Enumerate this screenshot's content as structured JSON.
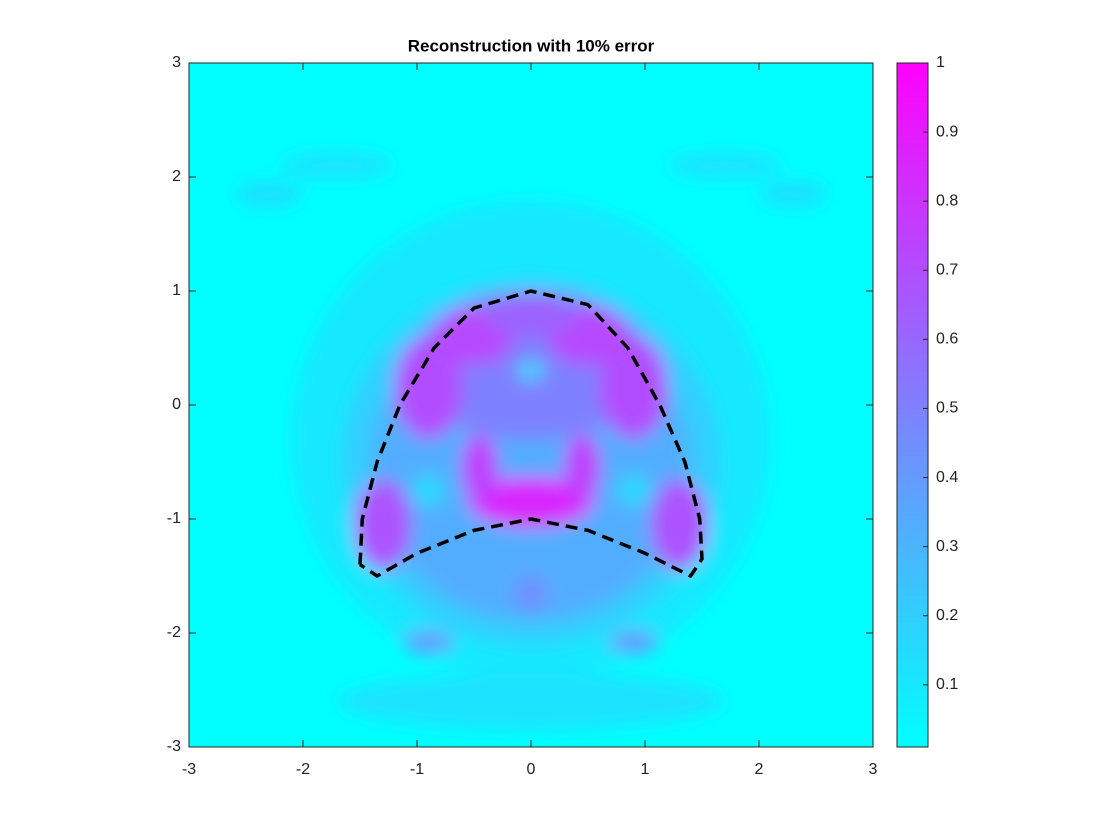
{
  "chart_data": {
    "type": "contour",
    "title": "Reconstruction with 10% error",
    "xlim": [
      -3,
      3
    ],
    "ylim": [
      -3,
      3
    ],
    "xticks": [
      -3,
      -2,
      -1,
      0,
      1,
      2,
      3
    ],
    "yticks": [
      -3,
      -2,
      -1,
      0,
      1,
      2,
      3
    ],
    "clim": [
      0.01,
      1
    ],
    "cticks": [
      0.1,
      0.2,
      0.3,
      0.4,
      0.5,
      0.6,
      0.7,
      0.8,
      0.9,
      1
    ],
    "colormap": [
      "#00ffff",
      "#ff00ff"
    ],
    "field": [
      {
        "x": 0,
        "y": -0.3,
        "rx": 2.1,
        "ry": 2.1,
        "value": 0.1
      },
      {
        "x": -2.3,
        "y": 1.85,
        "rx": 0.3,
        "ry": 0.12,
        "value": 0.13
      },
      {
        "x": 2.3,
        "y": 1.85,
        "rx": 0.3,
        "ry": 0.12,
        "value": 0.13
      },
      {
        "x": -1.7,
        "y": 2.1,
        "rx": 0.5,
        "ry": 0.12,
        "value": 0.12
      },
      {
        "x": 1.7,
        "y": 2.1,
        "rx": 0.5,
        "ry": 0.12,
        "value": 0.12
      },
      {
        "x": 0,
        "y": -2.6,
        "rx": 1.7,
        "ry": 0.25,
        "value": 0.12
      },
      {
        "x": 0,
        "y": -0.5,
        "rx": 1.65,
        "ry": 1.6,
        "value": 0.2
      },
      {
        "x": 0,
        "y": -0.55,
        "rx": 1.4,
        "ry": 1.35,
        "value": 0.33
      },
      {
        "x": 0,
        "y": 0.35,
        "rx": 1.05,
        "ry": 0.65,
        "value": 0.5
      },
      {
        "x": -0.9,
        "y": 0.15,
        "rx": 0.3,
        "ry": 0.45,
        "value": 0.7
      },
      {
        "x": 0.9,
        "y": 0.15,
        "rx": 0.3,
        "ry": 0.45,
        "value": 0.7
      },
      {
        "x": -0.5,
        "y": 0.6,
        "rx": 0.35,
        "ry": 0.25,
        "value": 0.72
      },
      {
        "x": 0.5,
        "y": 0.6,
        "rx": 0.35,
        "ry": 0.25,
        "value": 0.72
      },
      {
        "x": 0,
        "y": 0.78,
        "rx": 0.4,
        "ry": 0.18,
        "value": 0.62
      },
      {
        "x": -1.3,
        "y": -1.05,
        "rx": 0.25,
        "ry": 0.4,
        "value": 0.68
      },
      {
        "x": 1.3,
        "y": -1.05,
        "rx": 0.25,
        "ry": 0.4,
        "value": 0.68
      },
      {
        "x": 0,
        "y": -0.85,
        "rx": 0.55,
        "ry": 0.22,
        "value": 0.85
      },
      {
        "x": -0.45,
        "y": -0.55,
        "rx": 0.16,
        "ry": 0.3,
        "value": 0.75
      },
      {
        "x": 0.45,
        "y": -0.55,
        "rx": 0.16,
        "ry": 0.3,
        "value": 0.75
      },
      {
        "x": 0,
        "y": 0.3,
        "rx": 0.12,
        "ry": 0.08,
        "value": 0.15
      },
      {
        "x": -0.9,
        "y": -0.75,
        "rx": 0.14,
        "ry": 0.14,
        "value": 0.15
      },
      {
        "x": 0.9,
        "y": -0.75,
        "rx": 0.14,
        "ry": 0.14,
        "value": 0.15
      },
      {
        "x": 0,
        "y": -1.65,
        "rx": 0.15,
        "ry": 0.15,
        "value": 0.45
      },
      {
        "x": -0.9,
        "y": -2.08,
        "rx": 0.22,
        "ry": 0.1,
        "value": 0.42
      },
      {
        "x": 0.9,
        "y": -2.08,
        "rx": 0.22,
        "ry": 0.1,
        "value": 0.42
      }
    ],
    "series": [
      {
        "color": "#000000",
        "x": [
          -1.5,
          -1.48,
          -1.35,
          -1.15,
          -0.85,
          -0.5,
          0,
          0.5,
          0.85,
          1.13,
          1.35,
          1.48,
          1.5,
          1.4,
          1.0,
          0.5,
          0,
          -0.5,
          -1.0,
          -1.35,
          -1.5
        ],
        "values": [
          -1.4,
          -1.0,
          -0.5,
          0,
          0.5,
          0.85,
          1,
          0.88,
          0.5,
          0,
          -0.5,
          -1.0,
          -1.35,
          -1.5,
          -1.3,
          -1.1,
          -1,
          -1.1,
          -1.3,
          -1.5,
          -1.4
        ]
      }
    ]
  }
}
